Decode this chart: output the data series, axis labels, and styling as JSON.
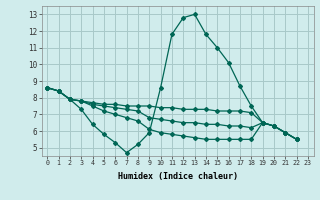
{
  "xlabel": "Humidex (Indice chaleur)",
  "bg_color": "#d0ecec",
  "grid_color": "#a8c8c8",
  "line_color": "#006655",
  "xlim": [
    -0.5,
    23.5
  ],
  "ylim": [
    4.5,
    13.5
  ],
  "xticks": [
    0,
    1,
    2,
    3,
    4,
    5,
    6,
    7,
    8,
    9,
    10,
    11,
    12,
    13,
    14,
    15,
    16,
    17,
    18,
    19,
    20,
    21,
    22,
    23
  ],
  "yticks": [
    5,
    6,
    7,
    8,
    9,
    10,
    11,
    12,
    13
  ],
  "series": [
    [
      8.6,
      8.4,
      7.9,
      7.3,
      6.4,
      5.8,
      5.3,
      4.7,
      5.2,
      5.9,
      8.6,
      11.8,
      12.8,
      13.0,
      11.8,
      11.0,
      10.1,
      8.7,
      7.5,
      6.5,
      6.3,
      5.9,
      5.5
    ],
    [
      8.6,
      8.4,
      7.9,
      7.8,
      7.7,
      7.6,
      7.6,
      7.5,
      7.5,
      7.5,
      7.4,
      7.4,
      7.3,
      7.3,
      7.3,
      7.2,
      7.2,
      7.2,
      7.1,
      6.5,
      6.3,
      5.9,
      5.5
    ],
    [
      8.6,
      8.4,
      7.9,
      7.8,
      7.6,
      7.5,
      7.4,
      7.3,
      7.2,
      6.8,
      6.7,
      6.6,
      6.5,
      6.5,
      6.4,
      6.4,
      6.3,
      6.3,
      6.2,
      6.5,
      6.3,
      5.9,
      5.5
    ],
    [
      8.6,
      8.4,
      7.9,
      7.8,
      7.5,
      7.2,
      7.0,
      6.8,
      6.6,
      6.1,
      5.9,
      5.8,
      5.7,
      5.6,
      5.5,
      5.5,
      5.5,
      5.5,
      5.5,
      6.5,
      6.3,
      5.9,
      5.5
    ]
  ],
  "x_series": [
    0,
    1,
    2,
    3,
    4,
    5,
    6,
    7,
    8,
    9,
    10,
    11,
    12,
    13,
    14,
    15,
    16,
    17,
    18,
    19,
    20,
    21,
    22
  ]
}
